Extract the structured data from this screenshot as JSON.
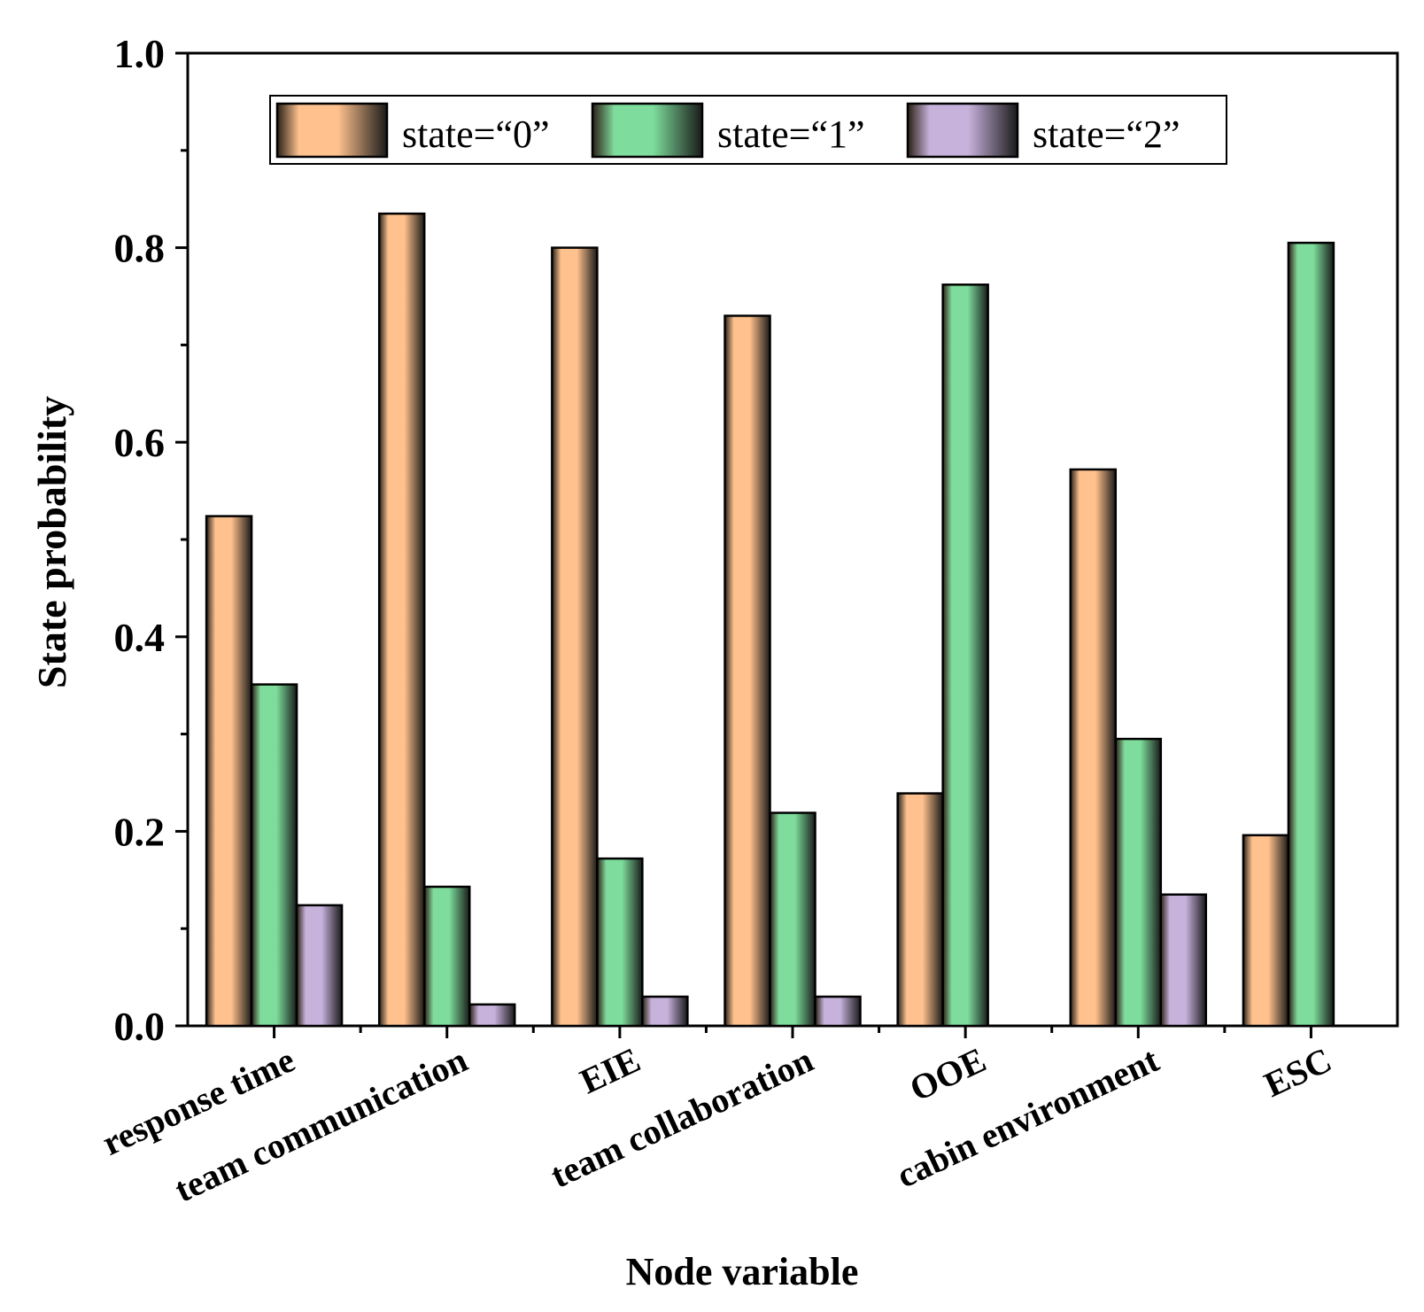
{
  "chart_data": {
    "type": "bar",
    "title": "",
    "xlabel": "Node variable",
    "ylabel": "State probability",
    "ylim": [
      0,
      1.0
    ],
    "yticks": [
      0.0,
      0.2,
      0.4,
      0.6,
      0.8,
      1.0
    ],
    "ytick_labels": [
      "0.0",
      "0.2",
      "0.4",
      "0.6",
      "0.8",
      "1.0"
    ],
    "categories": [
      "response time",
      "team communication",
      "EIE",
      "team collaboration",
      "OOE",
      "cabin environment",
      "ESC"
    ],
    "series": [
      {
        "name": "state=“0”",
        "color": "#ffc28f",
        "values": [
          0.524,
          0.835,
          0.8,
          0.73,
          0.239,
          0.572,
          0.196
        ]
      },
      {
        "name": "state=“1”",
        "color": "#7edc9c",
        "values": [
          0.351,
          0.143,
          0.172,
          0.219,
          0.762,
          0.295,
          0.805
        ]
      },
      {
        "name": "state=“2”",
        "color": "#c7b2dc",
        "values": [
          0.124,
          0.022,
          0.03,
          0.03,
          0.0,
          0.135,
          0.0
        ]
      }
    ],
    "grid": false,
    "legend_position": "top"
  }
}
